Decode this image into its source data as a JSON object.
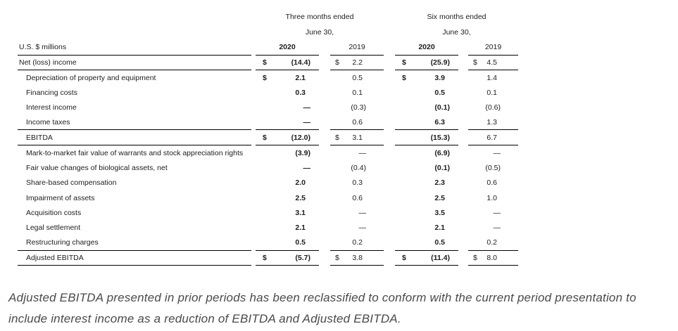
{
  "table": {
    "unit_label": "U.S. $ millions",
    "groups": [
      {
        "title": "Three months ended",
        "subtitle": "June 30,"
      },
      {
        "title": "Six months ended",
        "subtitle": "June 30,"
      }
    ],
    "year_headers": [
      "2020",
      "2019",
      "2020",
      "2019"
    ],
    "rows": [
      {
        "label": "Net (loss) income",
        "indent": false,
        "rule_below": true,
        "dollar": [
          true,
          true,
          true,
          true
        ],
        "values": [
          "(14.4)",
          "2.2",
          "(25.9)",
          "4.5"
        ]
      },
      {
        "label": "Depreciation of property and equipment",
        "indent": true,
        "rule_below": false,
        "dollar": [
          true,
          false,
          true,
          false
        ],
        "values": [
          "2.1",
          "0.5",
          "3.9",
          "1.4"
        ]
      },
      {
        "label": "Financing costs",
        "indent": true,
        "rule_below": false,
        "dollar": [
          false,
          false,
          false,
          false
        ],
        "values": [
          "0.3",
          "0.1",
          "0.5",
          "0.1"
        ]
      },
      {
        "label": "Interest income",
        "indent": true,
        "rule_below": false,
        "dollar": [
          false,
          false,
          false,
          false
        ],
        "values": [
          "—",
          "(0.3)",
          "(0.1)",
          "(0.6)"
        ]
      },
      {
        "label": "Income taxes",
        "indent": true,
        "rule_below": true,
        "dollar": [
          false,
          false,
          false,
          false
        ],
        "values": [
          "—",
          "0.6",
          "6.3",
          "1.3"
        ]
      },
      {
        "label": "EBITDA",
        "indent": true,
        "rule_below": true,
        "dollar": [
          true,
          true,
          false,
          false
        ],
        "values": [
          "(12.0)",
          "3.1",
          "(15.3)",
          "6.7"
        ]
      },
      {
        "label": "Mark-to-market fair value of warrants and stock appreciation rights",
        "indent": true,
        "rule_below": false,
        "dollar": [
          false,
          false,
          false,
          false
        ],
        "values": [
          "(3.9)",
          "—",
          "(6.9)",
          "—"
        ]
      },
      {
        "label": "Fair value changes of biological assets, net",
        "indent": true,
        "rule_below": false,
        "dollar": [
          false,
          false,
          false,
          false
        ],
        "values": [
          "—",
          "(0.4)",
          "(0.1)",
          "(0.5)"
        ]
      },
      {
        "label": "Share-based compensation",
        "indent": true,
        "rule_below": false,
        "dollar": [
          false,
          false,
          false,
          false
        ],
        "values": [
          "2.0",
          "0.3",
          "2.3",
          "0.6"
        ]
      },
      {
        "label": "Impairment of assets",
        "indent": true,
        "rule_below": false,
        "dollar": [
          false,
          false,
          false,
          false
        ],
        "values": [
          "2.5",
          "0.6",
          "2.5",
          "1.0"
        ]
      },
      {
        "label": "Acquisition costs",
        "indent": true,
        "rule_below": false,
        "dollar": [
          false,
          false,
          false,
          false
        ],
        "values": [
          "3.1",
          "—",
          "3.5",
          "—"
        ]
      },
      {
        "label": "Legal settlement",
        "indent": true,
        "rule_below": false,
        "dollar": [
          false,
          false,
          false,
          false
        ],
        "values": [
          "2.1",
          "—",
          "2.1",
          "—"
        ]
      },
      {
        "label": "Restructuring charges",
        "indent": true,
        "rule_below": true,
        "dollar": [
          false,
          false,
          false,
          false
        ],
        "values": [
          "0.5",
          "0.2",
          "0.5",
          "0.2"
        ]
      },
      {
        "label": "Adjusted EBITDA",
        "indent": true,
        "rule_below": true,
        "dollar": [
          true,
          true,
          true,
          true
        ],
        "values": [
          "(5.7)",
          "3.8",
          "(11.4)",
          "8.0"
        ]
      }
    ]
  },
  "note_lines": [
    "Adjusted EBITDA presented in prior periods has been reclassified to conform with the current period presentation to",
    "include interest income as a reduction of EBITDA and Adjusted EBITDA."
  ],
  "colors": {
    "table_text": "#1d1d1d",
    "rule": "#000000",
    "note_text": "#4a4a4a"
  }
}
